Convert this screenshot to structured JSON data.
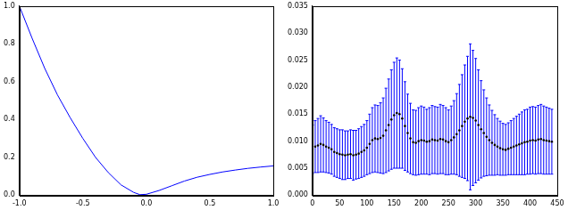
{
  "chart_data": [
    {
      "type": "line",
      "x": [
        -1.0,
        -0.9,
        -0.8,
        -0.7,
        -0.6,
        -0.5,
        -0.4,
        -0.3,
        -0.2,
        -0.1,
        -0.05,
        0.0,
        0.1,
        0.2,
        0.3,
        0.4,
        0.5,
        0.6,
        0.7,
        0.8,
        0.9,
        1.0
      ],
      "values": [
        1.0,
        0.83,
        0.67,
        0.53,
        0.41,
        0.3,
        0.2,
        0.12,
        0.055,
        0.015,
        0.003,
        0.005,
        0.025,
        0.05,
        0.075,
        0.095,
        0.11,
        0.123,
        0.133,
        0.142,
        0.149,
        0.155
      ],
      "color": "#0000ff",
      "xlim": [
        -1,
        1
      ],
      "xticks": [
        {
          "value": -1,
          "label": "-1.0"
        },
        {
          "value": -0.5,
          "label": "-0.5"
        },
        {
          "value": 0,
          "label": "0.0"
        },
        {
          "value": 0.5,
          "label": "0.5"
        },
        {
          "value": 1,
          "label": "1.0"
        }
      ],
      "ylim": [
        0,
        1
      ],
      "yticks": [
        {
          "value": 0,
          "label": "0.0"
        },
        {
          "value": 0.2,
          "label": "0.2"
        },
        {
          "value": 0.4,
          "label": "0.4"
        },
        {
          "value": 0.6,
          "label": "0.6"
        },
        {
          "value": 0.8,
          "label": "0.8"
        },
        {
          "value": 1,
          "label": "1.0"
        }
      ],
      "grid": false
    },
    {
      "type": "scatter",
      "x": [
        0,
        5,
        10,
        15,
        20,
        25,
        30,
        35,
        40,
        45,
        50,
        55,
        60,
        65,
        70,
        75,
        80,
        85,
        90,
        95,
        100,
        105,
        110,
        115,
        120,
        125,
        130,
        135,
        140,
        145,
        150,
        155,
        160,
        165,
        170,
        175,
        180,
        185,
        190,
        195,
        200,
        205,
        210,
        215,
        220,
        225,
        230,
        235,
        240,
        245,
        250,
        255,
        260,
        265,
        270,
        275,
        280,
        285,
        290,
        295,
        300,
        305,
        310,
        315,
        320,
        325,
        330,
        335,
        340,
        345,
        350,
        355,
        360,
        365,
        370,
        375,
        380,
        385,
        390,
        395,
        400,
        405,
        410,
        415,
        420,
        425,
        430,
        435,
        440
      ],
      "values": [
        0.0085,
        0.009,
        0.0092,
        0.0095,
        0.0093,
        0.009,
        0.0088,
        0.0085,
        0.008,
        0.0078,
        0.0076,
        0.0075,
        0.0074,
        0.0075,
        0.0076,
        0.0074,
        0.0075,
        0.0077,
        0.008,
        0.0083,
        0.0088,
        0.0095,
        0.0102,
        0.0105,
        0.0104,
        0.0106,
        0.011,
        0.012,
        0.013,
        0.014,
        0.0148,
        0.0152,
        0.015,
        0.0142,
        0.0128,
        0.0115,
        0.0105,
        0.0098,
        0.0097,
        0.01,
        0.0102,
        0.0101,
        0.0099,
        0.01,
        0.0103,
        0.0102,
        0.0101,
        0.0104,
        0.0103,
        0.01,
        0.0098,
        0.0102,
        0.0107,
        0.0113,
        0.012,
        0.0128,
        0.0136,
        0.0142,
        0.0145,
        0.0143,
        0.0138,
        0.013,
        0.0122,
        0.0115,
        0.0108,
        0.0102,
        0.0097,
        0.0093,
        0.009,
        0.0087,
        0.0085,
        0.0084,
        0.0086,
        0.0088,
        0.009,
        0.0092,
        0.0094,
        0.0096,
        0.0098,
        0.0099,
        0.0101,
        0.0102,
        0.0101,
        0.0103,
        0.0104,
        0.0102,
        0.0101,
        0.01,
        0.0099
      ],
      "errors": [
        0.0045,
        0.0048,
        0.005,
        0.0052,
        0.005,
        0.0048,
        0.0047,
        0.0046,
        0.0045,
        0.0045,
        0.0045,
        0.0046,
        0.0045,
        0.0044,
        0.0045,
        0.0046,
        0.0045,
        0.0046,
        0.0047,
        0.0048,
        0.005,
        0.0055,
        0.006,
        0.0062,
        0.0062,
        0.0065,
        0.007,
        0.0078,
        0.0085,
        0.0092,
        0.0098,
        0.0102,
        0.01,
        0.0092,
        0.0082,
        0.0072,
        0.0065,
        0.006,
        0.006,
        0.0062,
        0.0063,
        0.0062,
        0.006,
        0.0062,
        0.0063,
        0.0062,
        0.0062,
        0.0064,
        0.0063,
        0.0062,
        0.006,
        0.0063,
        0.0068,
        0.0075,
        0.0085,
        0.0095,
        0.0105,
        0.0115,
        0.0135,
        0.0125,
        0.0115,
        0.0102,
        0.009,
        0.008,
        0.0072,
        0.0065,
        0.006,
        0.0056,
        0.0052,
        0.005,
        0.0048,
        0.0047,
        0.0048,
        0.005,
        0.0052,
        0.0054,
        0.0056,
        0.0058,
        0.006,
        0.006,
        0.0062,
        0.0062,
        0.0062,
        0.0063,
        0.0064,
        0.0063,
        0.0062,
        0.0061,
        0.006
      ],
      "color": "#0000ff",
      "marker": "o",
      "xlim": [
        0,
        450
      ],
      "xticks": [
        0,
        50,
        100,
        150,
        200,
        250,
        300,
        350,
        400,
        450
      ],
      "ylim": [
        0,
        0.035
      ],
      "yticks": [
        {
          "value": 0,
          "label": "0.000"
        },
        {
          "value": 0.005,
          "label": "0.005"
        },
        {
          "value": 0.01,
          "label": "0.010"
        },
        {
          "value": 0.015,
          "label": "0.015"
        },
        {
          "value": 0.02,
          "label": "0.020"
        },
        {
          "value": 0.025,
          "label": "0.025"
        },
        {
          "value": 0.03,
          "label": "0.030"
        },
        {
          "value": 0.035,
          "label": "0.035"
        }
      ],
      "grid": false
    }
  ]
}
